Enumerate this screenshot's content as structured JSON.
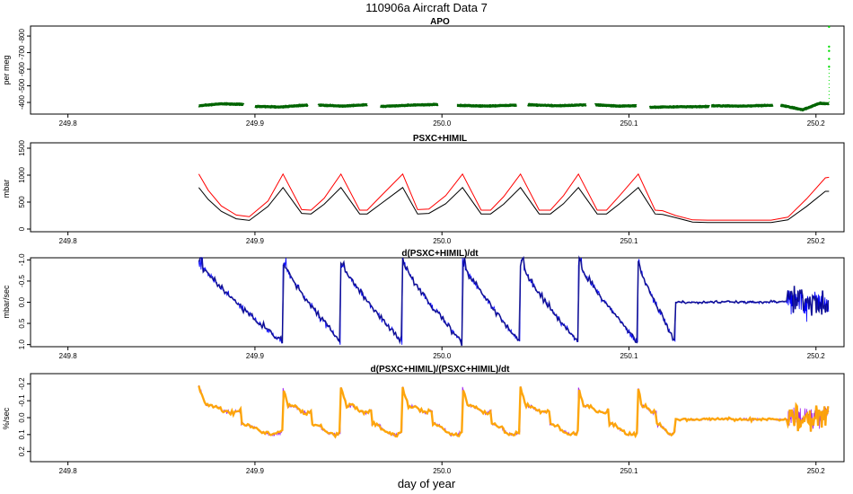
{
  "figure": {
    "title": "110906a   Aircraft Data 7",
    "xlabel": "day of year"
  },
  "chart_data": [
    {
      "type": "line",
      "title": "APO",
      "ylabel": "per meg",
      "xlim": [
        249.78,
        250.215
      ],
      "ylim": [
        -860,
        -330
      ],
      "y_reversed": true,
      "xticks": [
        "249.8",
        "249.9",
        "250.0",
        "250.1",
        "250.2"
      ],
      "yticks": [
        "-400",
        "-500",
        "-600",
        "-700",
        "-800"
      ],
      "segments": [
        {
          "x": [
            249.87,
            249.882,
            249.894
          ],
          "y": [
            -380,
            -392,
            -388
          ]
        },
        {
          "x": [
            249.9,
            249.914,
            249.928
          ],
          "y": [
            -376,
            -373,
            -384
          ]
        },
        {
          "x": [
            249.934,
            249.947,
            249.96
          ],
          "y": [
            -384,
            -378,
            -386
          ]
        },
        {
          "x": [
            249.967,
            249.982,
            249.998
          ],
          "y": [
            -376,
            -383,
            -388
          ]
        },
        {
          "x": [
            250.008,
            250.024,
            250.04
          ],
          "y": [
            -382,
            -378,
            -384
          ]
        },
        {
          "x": [
            250.046,
            250.062,
            250.077
          ],
          "y": [
            -386,
            -380,
            -386
          ]
        },
        {
          "x": [
            250.082,
            250.095,
            250.104
          ],
          "y": [
            -386,
            -378,
            -380
          ]
        },
        {
          "x": [
            250.111,
            250.128,
            250.143
          ],
          "y": [
            -371,
            -374,
            -375
          ]
        },
        {
          "x": [
            250.144,
            250.16,
            250.177
          ],
          "y": [
            -380,
            -378,
            -383
          ]
        },
        {
          "x": [
            250.181,
            250.193,
            250.202,
            250.207
          ],
          "y": [
            -383,
            -356,
            -395,
            -392
          ]
        }
      ],
      "outliers": {
        "x": [
          250.207,
          250.207,
          250.207,
          250.207,
          250.207
        ],
        "y": [
          -615,
          -662,
          -710,
          -736,
          -855
        ]
      },
      "colors": {
        "main": "#006400",
        "outlier": "#00dd00"
      }
    },
    {
      "type": "line",
      "title": "PSXC+HIMIL",
      "ylabel": "mbar",
      "xlim": [
        249.78,
        250.215
      ],
      "ylim": [
        -50,
        1600
      ],
      "xticks": [
        "249.8",
        "249.9",
        "250.0",
        "250.1",
        "250.2"
      ],
      "yticks": [
        "0",
        "500",
        "1000",
        "1500"
      ],
      "series": [
        {
          "color": "#ff0000",
          "x": [
            249.87,
            249.875,
            249.882,
            249.89,
            249.897,
            249.907,
            249.915,
            249.925,
            249.93,
            249.937,
            249.946,
            249.956,
            249.96,
            249.967,
            249.979,
            249.987,
            249.993,
            250.002,
            250.011,
            250.021,
            250.026,
            250.033,
            250.042,
            250.052,
            250.058,
            250.065,
            250.073,
            250.083,
            250.088,
            250.095,
            250.105,
            250.114,
            250.118,
            250.125,
            250.134,
            250.142,
            250.152,
            250.162,
            250.176,
            250.185,
            250.195,
            250.205,
            250.207
          ],
          "y": [
            1020,
            720,
            430,
            260,
            230,
            520,
            1020,
            360,
            350,
            570,
            1020,
            350,
            350,
            600,
            1020,
            360,
            370,
            620,
            1020,
            350,
            350,
            600,
            1020,
            350,
            350,
            620,
            1020,
            350,
            350,
            620,
            1020,
            350,
            340,
            250,
            170,
            165,
            165,
            165,
            165,
            220,
            560,
            950,
            960
          ]
        },
        {
          "color": "#000000",
          "x": [
            249.87,
            249.875,
            249.882,
            249.89,
            249.897,
            249.907,
            249.915,
            249.925,
            249.93,
            249.937,
            249.946,
            249.956,
            249.96,
            249.967,
            249.979,
            249.987,
            249.993,
            250.002,
            250.011,
            250.021,
            250.026,
            250.033,
            250.042,
            250.052,
            250.058,
            250.065,
            250.073,
            250.083,
            250.088,
            250.095,
            250.105,
            250.114,
            250.118,
            250.125,
            250.134,
            250.142,
            250.152,
            250.162,
            250.176,
            250.185,
            250.195,
            250.205,
            250.207
          ],
          "y": [
            770,
            550,
            330,
            190,
            160,
            420,
            770,
            290,
            280,
            460,
            770,
            280,
            280,
            460,
            770,
            280,
            290,
            470,
            770,
            280,
            280,
            460,
            770,
            280,
            280,
            470,
            770,
            280,
            280,
            470,
            770,
            280,
            270,
            210,
            130,
            120,
            120,
            120,
            120,
            170,
            420,
            700,
            700
          ]
        }
      ]
    },
    {
      "type": "line",
      "title": "d(PSXC+HIMIL)/dt",
      "ylabel": "mbar/sec",
      "xlim": [
        249.78,
        250.215
      ],
      "ylim": [
        -1.05,
        1.05
      ],
      "y_reversed": true,
      "xticks": [
        "249.8",
        "249.9",
        "250.0",
        "250.1",
        "250.2"
      ],
      "yticks": [
        "-1.0",
        "-0.5",
        "0.0",
        "0.5",
        "1.0"
      ],
      "cycles": [
        {
          "x0": 249.87,
          "x1": 249.915
        },
        {
          "x0": 249.915,
          "x1": 249.946
        },
        {
          "x0": 249.946,
          "x1": 249.979
        },
        {
          "x0": 249.979,
          "x1": 250.011
        },
        {
          "x0": 250.011,
          "x1": 250.042
        },
        {
          "x0": 250.042,
          "x1": 250.073
        },
        {
          "x0": 250.073,
          "x1": 250.105
        },
        {
          "x0": 250.105,
          "x1": 250.125
        }
      ],
      "flat_range": [
        250.125,
        250.185
      ],
      "noisy_range": [
        250.185,
        250.207
      ],
      "colors": {
        "line": "#0000ff",
        "points": "#000080"
      }
    },
    {
      "type": "line",
      "title": "d(PSXC+HIMIL)/(PSXC+HIMIL)/dt",
      "ylabel": "%/sec",
      "xlim": [
        249.78,
        250.215
      ],
      "ylim": [
        -0.26,
        0.26
      ],
      "y_reversed": true,
      "xticks": [
        "249.8",
        "249.9",
        "250.0",
        "250.1",
        "250.2"
      ],
      "yticks": [
        "-0.2",
        "-0.1",
        "0.0",
        "0.1",
        "0.2"
      ],
      "cycles": [
        {
          "x0": 249.87,
          "x1": 249.915
        },
        {
          "x0": 249.915,
          "x1": 249.946
        },
        {
          "x0": 249.946,
          "x1": 249.979
        },
        {
          "x0": 249.979,
          "x1": 250.011
        },
        {
          "x0": 250.011,
          "x1": 250.042
        },
        {
          "x0": 250.042,
          "x1": 250.073
        },
        {
          "x0": 250.073,
          "x1": 250.105
        },
        {
          "x0": 250.105,
          "x1": 250.125
        }
      ],
      "flat_range": [
        250.125,
        250.185
      ],
      "noisy_range": [
        250.185,
        250.207
      ],
      "colors": {
        "line": "#a020f0",
        "points": "#ffa500"
      }
    }
  ]
}
